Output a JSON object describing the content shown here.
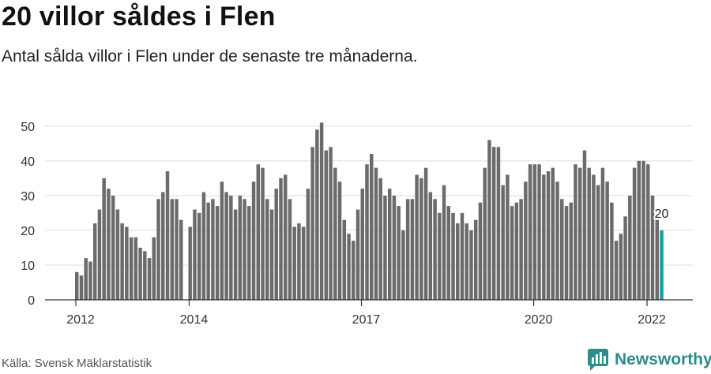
{
  "title": "20 villor såldes i Flen",
  "subtitle": "Antal sålda villor i Flen under de senaste tre månaderna.",
  "source": "Källa: Svensk Mäklarstatistik",
  "brand": {
    "name": "Newsworthy",
    "icon": "newsworthy-logo-icon",
    "color": "#2f8c8a"
  },
  "chart_data": {
    "type": "bar",
    "highlight_color": "#1a9c9a",
    "bar_color": "#6b6b6e",
    "ylim": [
      0,
      52
    ],
    "yticks": [
      0,
      10,
      20,
      30,
      40,
      50
    ],
    "grid": true,
    "xtick_labels": [
      "2012",
      "2014",
      "2017",
      "2020",
      "2022"
    ],
    "xtick_index": [
      0,
      25,
      63,
      101,
      126
    ],
    "last_value_label": "20",
    "values": [
      8,
      7,
      12,
      11,
      22,
      26,
      35,
      32,
      30,
      26,
      22,
      21,
      18,
      18,
      15,
      14,
      12,
      18,
      29,
      31,
      37,
      29,
      29,
      23,
      null,
      21,
      26,
      25,
      31,
      28,
      29,
      27,
      34,
      31,
      30,
      26,
      30,
      29,
      27,
      34,
      39,
      38,
      29,
      26,
      32,
      35,
      36,
      29,
      21,
      22,
      21,
      32,
      44,
      49,
      51,
      43,
      44,
      38,
      34,
      23,
      19,
      17,
      26,
      32,
      39,
      42,
      38,
      35,
      30,
      32,
      30,
      27,
      20,
      29,
      29,
      36,
      35,
      38,
      31,
      29,
      25,
      33,
      27,
      25,
      22,
      25,
      22,
      20,
      23,
      28,
      38,
      46,
      44,
      44,
      33,
      36,
      27,
      28,
      29,
      34,
      39,
      39,
      39,
      36,
      37,
      38,
      34,
      29,
      27,
      28,
      39,
      38,
      43,
      38,
      36,
      33,
      38,
      34,
      28,
      17,
      19,
      24,
      30,
      38,
      40,
      40,
      39,
      30,
      23,
      20
    ]
  }
}
